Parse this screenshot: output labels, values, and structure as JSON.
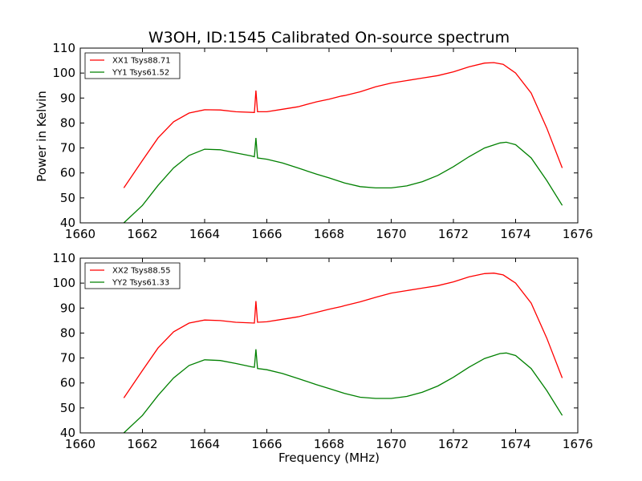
{
  "page": {
    "title": "W3OH, ID:1545 Calibrated On-source spectrum",
    "xlabel": "Frequency (MHz)",
    "ylabel": "Power in Kelvin"
  },
  "chart_data": [
    {
      "type": "line",
      "xlim": [
        1660,
        1676
      ],
      "ylim": [
        40,
        110
      ],
      "xticks": [
        1660,
        1662,
        1664,
        1666,
        1668,
        1670,
        1672,
        1674,
        1676
      ],
      "yticks": [
        40,
        50,
        60,
        70,
        80,
        90,
        100,
        110
      ],
      "legend_position": "top-left",
      "grid": false,
      "series": [
        {
          "name": "XX1 Tsys88.71",
          "color": "#ff0000",
          "points": [
            [
              1661.4,
              54
            ],
            [
              1662.0,
              65
            ],
            [
              1662.5,
              74
            ],
            [
              1663.0,
              80.5
            ],
            [
              1663.5,
              84
            ],
            [
              1664.0,
              85.3
            ],
            [
              1664.5,
              85.2
            ],
            [
              1665.0,
              84.5
            ],
            [
              1665.6,
              84.2
            ],
            [
              1665.65,
              93
            ],
            [
              1665.7,
              84.5
            ],
            [
              1666.0,
              84.5
            ],
            [
              1666.5,
              85.5
            ],
            [
              1667.0,
              86.5
            ],
            [
              1667.6,
              88.5
            ],
            [
              1668.0,
              89.5
            ],
            [
              1668.4,
              90.8
            ],
            [
              1668.5,
              91
            ],
            [
              1669.0,
              92.5
            ],
            [
              1669.5,
              94.5
            ],
            [
              1670.0,
              96
            ],
            [
              1670.5,
              97
            ],
            [
              1671.0,
              98
            ],
            [
              1671.5,
              99
            ],
            [
              1672.0,
              100.5
            ],
            [
              1672.5,
              102.5
            ],
            [
              1673.0,
              104
            ],
            [
              1673.3,
              104.2
            ],
            [
              1673.6,
              103.5
            ],
            [
              1674.0,
              100
            ],
            [
              1674.5,
              92
            ],
            [
              1675.0,
              78
            ],
            [
              1675.5,
              62
            ]
          ]
        },
        {
          "name": "YY1 Tsys61.52",
          "color": "#008000",
          "points": [
            [
              1661.4,
              40
            ],
            [
              1662.0,
              47
            ],
            [
              1662.5,
              55
            ],
            [
              1663.0,
              62
            ],
            [
              1663.5,
              67
            ],
            [
              1664.0,
              69.5
            ],
            [
              1664.5,
              69.3
            ],
            [
              1665.0,
              68
            ],
            [
              1665.5,
              66.8
            ],
            [
              1665.6,
              66.5
            ],
            [
              1665.65,
              74
            ],
            [
              1665.7,
              66
            ],
            [
              1666.0,
              65.5
            ],
            [
              1666.5,
              64
            ],
            [
              1667.0,
              62
            ],
            [
              1667.6,
              59.5
            ],
            [
              1668.0,
              58
            ],
            [
              1668.5,
              56
            ],
            [
              1669.0,
              54.5
            ],
            [
              1669.5,
              54
            ],
            [
              1670.0,
              54
            ],
            [
              1670.5,
              54.8
            ],
            [
              1671.0,
              56.5
            ],
            [
              1671.5,
              59
            ],
            [
              1672.0,
              62.5
            ],
            [
              1672.5,
              66.5
            ],
            [
              1673.0,
              70
            ],
            [
              1673.5,
              72
            ],
            [
              1673.7,
              72.3
            ],
            [
              1674.0,
              71.3
            ],
            [
              1674.5,
              66
            ],
            [
              1675.0,
              57
            ],
            [
              1675.5,
              47
            ]
          ]
        }
      ]
    },
    {
      "type": "line",
      "xlim": [
        1660,
        1676
      ],
      "ylim": [
        40,
        110
      ],
      "xticks": [
        1660,
        1662,
        1664,
        1666,
        1668,
        1670,
        1672,
        1674,
        1676
      ],
      "yticks": [
        40,
        50,
        60,
        70,
        80,
        90,
        100,
        110
      ],
      "legend_position": "top-left",
      "grid": false,
      "series": [
        {
          "name": "XX2 Tsys88.55",
          "color": "#ff0000",
          "points": [
            [
              1661.4,
              54
            ],
            [
              1662.0,
              65
            ],
            [
              1662.5,
              74
            ],
            [
              1663.0,
              80.5
            ],
            [
              1663.5,
              84
            ],
            [
              1664.0,
              85.2
            ],
            [
              1664.5,
              85
            ],
            [
              1665.0,
              84.3
            ],
            [
              1665.6,
              84
            ],
            [
              1665.65,
              92.8
            ],
            [
              1665.7,
              84.3
            ],
            [
              1666.0,
              84.5
            ],
            [
              1666.5,
              85.5
            ],
            [
              1667.0,
              86.5
            ],
            [
              1667.6,
              88.3
            ],
            [
              1668.0,
              89.5
            ],
            [
              1668.4,
              90.6
            ],
            [
              1668.5,
              91
            ],
            [
              1669.0,
              92.5
            ],
            [
              1669.5,
              94.3
            ],
            [
              1670.0,
              96
            ],
            [
              1670.5,
              97
            ],
            [
              1671.0,
              98
            ],
            [
              1671.5,
              99
            ],
            [
              1672.0,
              100.5
            ],
            [
              1672.5,
              102.5
            ],
            [
              1673.0,
              103.8
            ],
            [
              1673.3,
              104
            ],
            [
              1673.6,
              103.3
            ],
            [
              1674.0,
              100
            ],
            [
              1674.5,
              92
            ],
            [
              1675.0,
              78
            ],
            [
              1675.5,
              62
            ]
          ]
        },
        {
          "name": "YY2 Tsys61.33",
          "color": "#008000",
          "points": [
            [
              1661.4,
              40
            ],
            [
              1662.0,
              47
            ],
            [
              1662.5,
              55
            ],
            [
              1663.0,
              62
            ],
            [
              1663.5,
              67
            ],
            [
              1664.0,
              69.3
            ],
            [
              1664.5,
              69
            ],
            [
              1665.0,
              67.8
            ],
            [
              1665.5,
              66.5
            ],
            [
              1665.6,
              66.3
            ],
            [
              1665.65,
              73.5
            ],
            [
              1665.7,
              65.8
            ],
            [
              1666.0,
              65.3
            ],
            [
              1666.5,
              63.8
            ],
            [
              1667.0,
              61.8
            ],
            [
              1667.6,
              59.3
            ],
            [
              1668.0,
              57.8
            ],
            [
              1668.5,
              55.8
            ],
            [
              1669.0,
              54.3
            ],
            [
              1669.5,
              53.8
            ],
            [
              1670.0,
              53.8
            ],
            [
              1670.5,
              54.6
            ],
            [
              1671.0,
              56.3
            ],
            [
              1671.5,
              58.8
            ],
            [
              1672.0,
              62.3
            ],
            [
              1672.5,
              66.3
            ],
            [
              1673.0,
              69.8
            ],
            [
              1673.5,
              71.8
            ],
            [
              1673.7,
              72
            ],
            [
              1674.0,
              71
            ],
            [
              1674.5,
              65.8
            ],
            [
              1675.0,
              57
            ],
            [
              1675.5,
              47
            ]
          ]
        }
      ]
    }
  ]
}
